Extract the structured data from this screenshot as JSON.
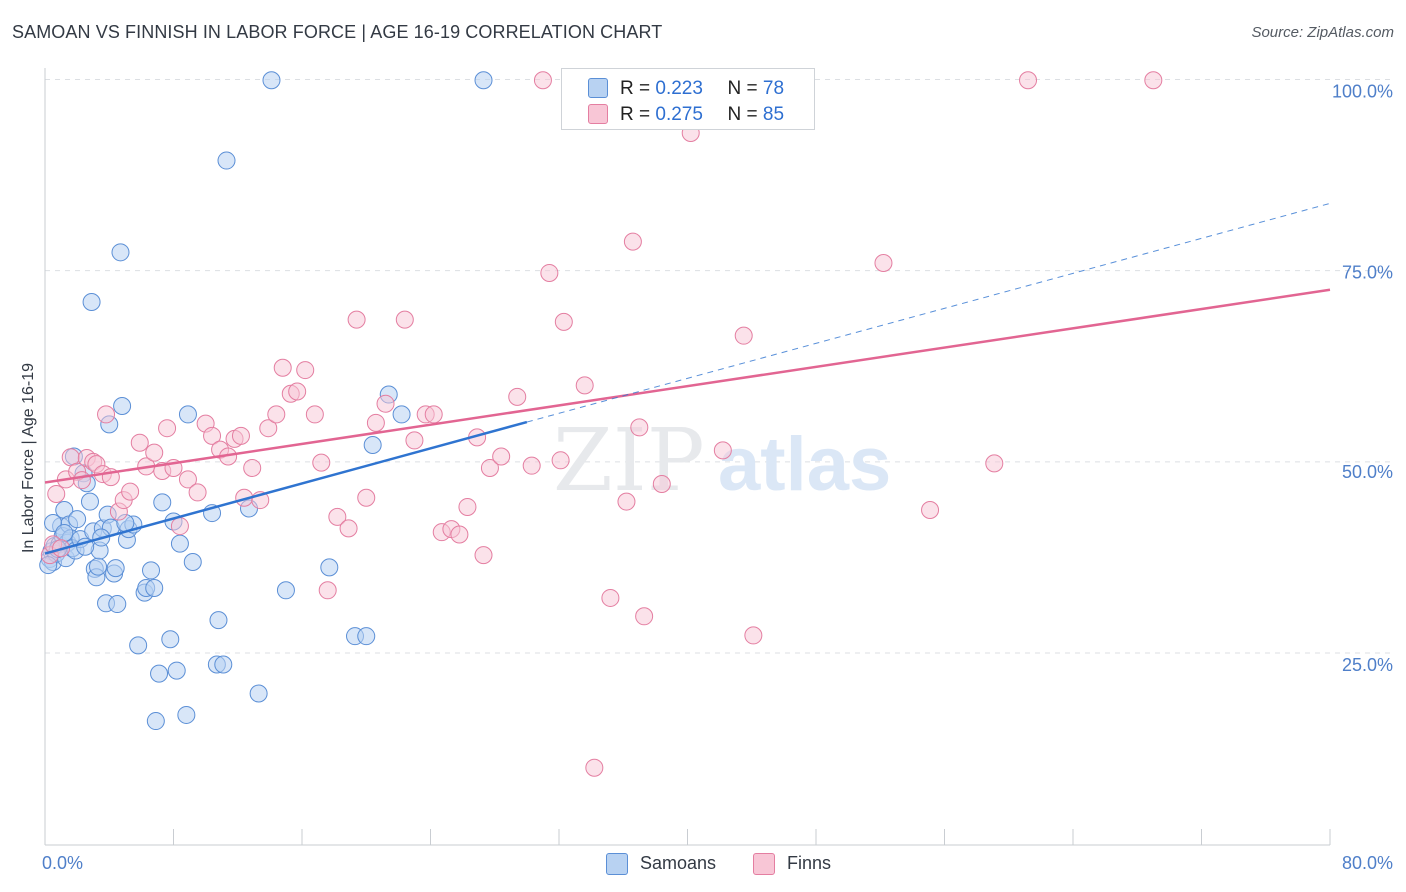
{
  "title": "SAMOAN VS FINNISH IN LABOR FORCE | AGE 16-19 CORRELATION CHART",
  "source": "Source: ZipAtlas.com",
  "watermark": {
    "zip": "ZIP",
    "atlas": "atlas"
  },
  "legend": {
    "r_label": "R =",
    "n_label": "N =",
    "rows": [
      {
        "r": "0.223",
        "n": "78"
      },
      {
        "r": "0.275",
        "n": "85"
      }
    ]
  },
  "bottom_legend": [
    "Samoans",
    "Finns"
  ],
  "colors": {
    "samoans_fill": "#b8d2f2",
    "samoans_stroke": "#5b8fd6",
    "samoans_line": "#2f74d0",
    "finns_fill": "#f8c6d6",
    "finns_stroke": "#e47ea1",
    "finns_line": "#e26592",
    "axis_label": "#4f7fc9",
    "grid": "#dcdfe3"
  },
  "chart_data": {
    "type": "scatter",
    "title": "SAMOAN VS FINNISH IN LABOR FORCE | AGE 16-19 CORRELATION CHART",
    "xlabel": "",
    "ylabel": "In Labor Force | Age 16-19",
    "xlim": [
      0,
      80
    ],
    "ylim": [
      0,
      105
    ],
    "x_tick_labels": [
      "0.0%",
      "80.0%"
    ],
    "y_ticks": [
      25,
      50,
      75,
      100
    ],
    "y_tick_labels": [
      "25.0%",
      "50.0%",
      "75.0%",
      "100.0%"
    ],
    "series": [
      {
        "name": "Samoans",
        "r": 0.223,
        "n": 78,
        "trend": {
          "x": [
            0,
            30
          ],
          "y": [
            38.0,
            55.2
          ]
        },
        "trend_extension": {
          "x": [
            30,
            80
          ],
          "y": [
            55.2,
            83.8
          ]
        },
        "points": [
          [
            0.3,
            37.3
          ],
          [
            0.4,
            38.3
          ],
          [
            0.5,
            36.9
          ],
          [
            0.6,
            39.0
          ],
          [
            0.7,
            38.0
          ],
          [
            0.9,
            39.2
          ],
          [
            1.0,
            41.6
          ],
          [
            1.1,
            40.3
          ],
          [
            1.2,
            43.7
          ],
          [
            1.3,
            37.4
          ],
          [
            1.4,
            39.4
          ],
          [
            1.5,
            41.8
          ],
          [
            1.6,
            40.0
          ],
          [
            1.7,
            38.7
          ],
          [
            1.8,
            50.7
          ],
          [
            1.9,
            38.4
          ],
          [
            2.0,
            42.5
          ],
          [
            2.2,
            39.9
          ],
          [
            2.4,
            48.5
          ],
          [
            2.6,
            47.2
          ],
          [
            2.8,
            44.8
          ],
          [
            2.9,
            70.9
          ],
          [
            3.0,
            40.9
          ],
          [
            3.1,
            36.0
          ],
          [
            3.2,
            34.9
          ],
          [
            3.3,
            36.3
          ],
          [
            3.4,
            38.4
          ],
          [
            3.6,
            41.3
          ],
          [
            3.8,
            31.5
          ],
          [
            3.9,
            43.1
          ],
          [
            4.0,
            54.9
          ],
          [
            4.1,
            41.4
          ],
          [
            4.3,
            35.4
          ],
          [
            4.4,
            36.1
          ],
          [
            4.5,
            31.4
          ],
          [
            4.7,
            77.4
          ],
          [
            4.8,
            57.3
          ],
          [
            5.1,
            39.8
          ],
          [
            5.2,
            41.2
          ],
          [
            5.5,
            41.8
          ],
          [
            5.8,
            26.0
          ],
          [
            6.2,
            32.9
          ],
          [
            6.3,
            33.5
          ],
          [
            6.6,
            35.8
          ],
          [
            6.8,
            33.5
          ],
          [
            6.9,
            16.1
          ],
          [
            7.1,
            22.3
          ],
          [
            7.3,
            44.7
          ],
          [
            7.8,
            26.8
          ],
          [
            8.0,
            42.2
          ],
          [
            8.2,
            22.7
          ],
          [
            8.4,
            39.3
          ],
          [
            8.8,
            16.9
          ],
          [
            8.9,
            56.2
          ],
          [
            9.2,
            36.9
          ],
          [
            10.4,
            43.3
          ],
          [
            10.7,
            23.5
          ],
          [
            10.8,
            29.3
          ],
          [
            11.1,
            23.5
          ],
          [
            11.3,
            89.4
          ],
          [
            12.7,
            43.9
          ],
          [
            13.3,
            19.7
          ],
          [
            14.1,
            99.9
          ],
          [
            15.0,
            33.2
          ],
          [
            17.7,
            36.2
          ],
          [
            19.3,
            27.2
          ],
          [
            20.0,
            27.2
          ],
          [
            20.4,
            52.2
          ],
          [
            21.4,
            58.8
          ],
          [
            22.2,
            56.2
          ],
          [
            27.3,
            99.9
          ],
          [
            0.2,
            36.5
          ],
          [
            0.5,
            42.0
          ],
          [
            0.8,
            38.6
          ],
          [
            1.2,
            40.7
          ],
          [
            2.5,
            38.9
          ],
          [
            3.5,
            40.1
          ],
          [
            5.0,
            42.0
          ]
        ]
      },
      {
        "name": "Finns",
        "r": 0.275,
        "n": 85,
        "trend": {
          "x": [
            0,
            80
          ],
          "y": [
            47.3,
            72.5
          ]
        },
        "points": [
          [
            0.3,
            37.8
          ],
          [
            0.5,
            39.2
          ],
          [
            0.7,
            45.8
          ],
          [
            1.0,
            38.7
          ],
          [
            1.3,
            47.7
          ],
          [
            1.6,
            50.6
          ],
          [
            2.0,
            48.7
          ],
          [
            2.3,
            47.6
          ],
          [
            2.6,
            50.5
          ],
          [
            3.0,
            50.0
          ],
          [
            3.2,
            49.7
          ],
          [
            3.6,
            48.4
          ],
          [
            3.8,
            56.2
          ],
          [
            4.1,
            48.0
          ],
          [
            4.6,
            43.5
          ],
          [
            4.9,
            45.0
          ],
          [
            5.3,
            46.1
          ],
          [
            5.9,
            52.5
          ],
          [
            6.3,
            49.4
          ],
          [
            6.8,
            51.2
          ],
          [
            7.3,
            48.8
          ],
          [
            7.6,
            54.4
          ],
          [
            8.0,
            49.2
          ],
          [
            8.4,
            41.6
          ],
          [
            8.9,
            47.7
          ],
          [
            9.5,
            46.0
          ],
          [
            10.0,
            55.0
          ],
          [
            10.4,
            53.4
          ],
          [
            10.9,
            51.6
          ],
          [
            11.4,
            50.7
          ],
          [
            11.8,
            53.0
          ],
          [
            12.2,
            53.4
          ],
          [
            12.4,
            45.3
          ],
          [
            12.9,
            49.2
          ],
          [
            13.4,
            45.0
          ],
          [
            13.9,
            54.4
          ],
          [
            14.4,
            56.2
          ],
          [
            14.8,
            62.3
          ],
          [
            15.3,
            58.9
          ],
          [
            15.7,
            59.2
          ],
          [
            16.2,
            62.0
          ],
          [
            16.8,
            56.2
          ],
          [
            17.2,
            49.9
          ],
          [
            17.6,
            33.2
          ],
          [
            18.2,
            42.8
          ],
          [
            18.9,
            41.3
          ],
          [
            19.4,
            68.6
          ],
          [
            20.0,
            45.3
          ],
          [
            20.6,
            55.1
          ],
          [
            21.2,
            57.6
          ],
          [
            22.4,
            68.6
          ],
          [
            23.0,
            52.8
          ],
          [
            23.7,
            56.2
          ],
          [
            24.2,
            56.2
          ],
          [
            24.7,
            40.8
          ],
          [
            25.3,
            41.2
          ],
          [
            25.8,
            40.5
          ],
          [
            26.3,
            44.1
          ],
          [
            26.9,
            53.2
          ],
          [
            27.3,
            37.8
          ],
          [
            27.7,
            49.2
          ],
          [
            28.4,
            50.7
          ],
          [
            29.4,
            58.5
          ],
          [
            30.3,
            49.5
          ],
          [
            31.0,
            99.9
          ],
          [
            31.4,
            74.7
          ],
          [
            32.1,
            50.2
          ],
          [
            32.3,
            68.3
          ],
          [
            33.6,
            60.0
          ],
          [
            34.2,
            10.0
          ],
          [
            35.2,
            32.2
          ],
          [
            36.2,
            44.8
          ],
          [
            36.6,
            78.8
          ],
          [
            37.0,
            54.5
          ],
          [
            37.3,
            29.8
          ],
          [
            38.4,
            47.1
          ],
          [
            40.2,
            93.0
          ],
          [
            42.2,
            51.5
          ],
          [
            43.5,
            66.5
          ],
          [
            44.1,
            27.3
          ],
          [
            52.2,
            76.0
          ],
          [
            55.1,
            43.7
          ],
          [
            59.1,
            49.8
          ],
          [
            61.2,
            99.9
          ],
          [
            69.0,
            99.9
          ]
        ]
      }
    ]
  }
}
